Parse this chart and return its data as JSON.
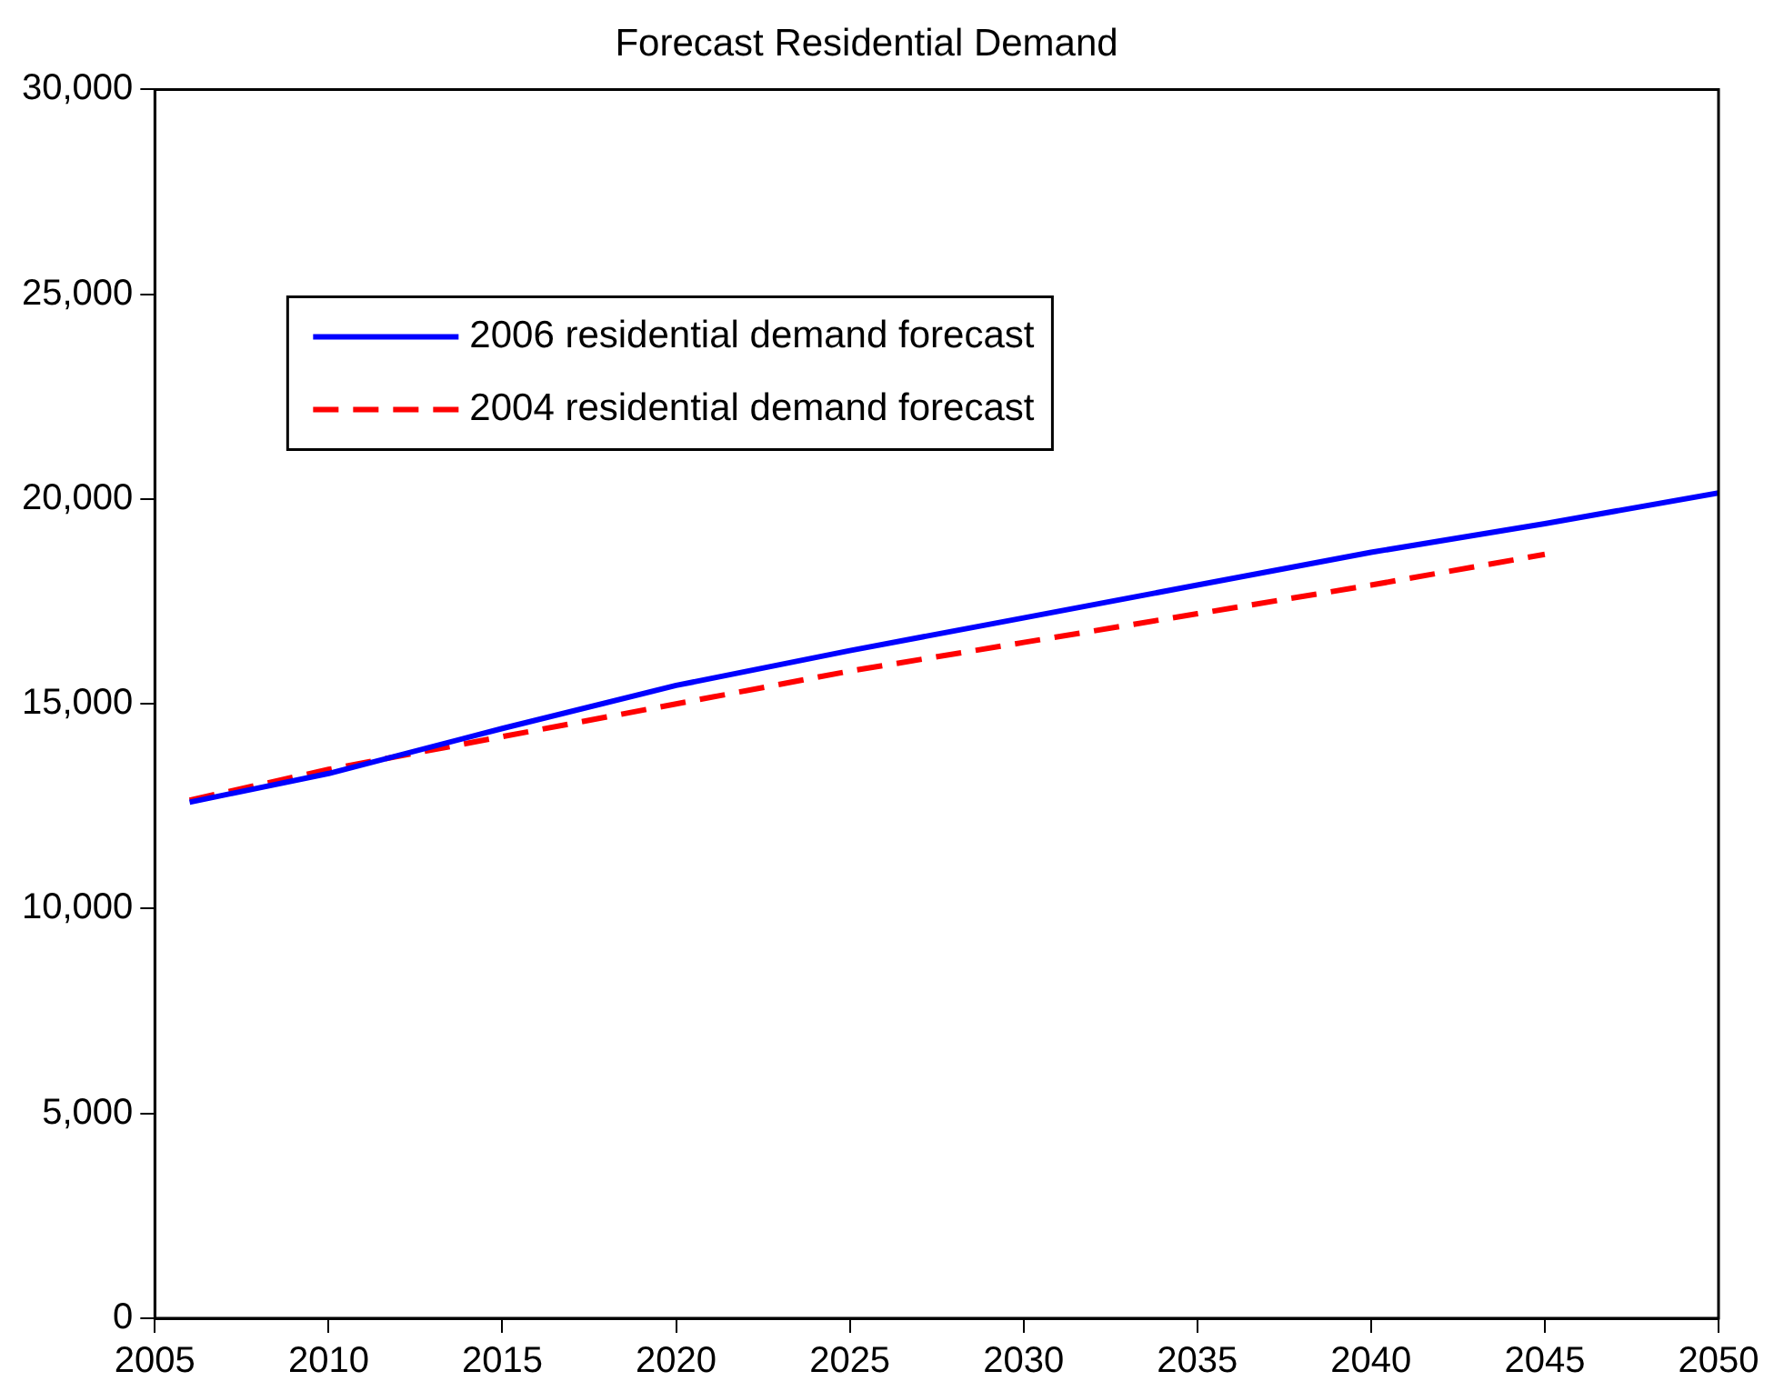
{
  "chart_data": {
    "type": "line",
    "title": "Forecast Residential Demand",
    "xlim": [
      2005,
      2050
    ],
    "xticks": [
      2005,
      2010,
      2015,
      2020,
      2025,
      2030,
      2035,
      2040,
      2045,
      2050
    ],
    "ylim": [
      0,
      30000
    ],
    "yticks": [
      {
        "value": 0,
        "label": "0"
      },
      {
        "value": 5000,
        "label": "5,000"
      },
      {
        "value": 10000,
        "label": "10,000"
      },
      {
        "value": 15000,
        "label": "15,000"
      },
      {
        "value": 20000,
        "label": "20,000"
      },
      {
        "value": 25000,
        "label": "25,000"
      },
      {
        "value": 30000,
        "label": "30,000"
      }
    ],
    "grid": false,
    "legend": "top left",
    "series": [
      {
        "name": "2006 residential demand forecast",
        "color": "#0000ff",
        "line_style": "solid",
        "x": [
          2006,
          2010,
          2015,
          2020,
          2025,
          2030,
          2035,
          2040,
          2045,
          2050
        ],
        "values": [
          12600,
          13300,
          14400,
          15450,
          16300,
          17100,
          17900,
          18700,
          19400,
          20150
        ]
      },
      {
        "name": "2004 residential demand forecast",
        "color": "#ff0000",
        "line_style": "dashed",
        "x": [
          2006,
          2010,
          2015,
          2020,
          2025,
          2030,
          2035,
          2040,
          2045
        ],
        "values": [
          12650,
          13400,
          14200,
          15000,
          15800,
          16500,
          17200,
          17900,
          18650
        ]
      }
    ]
  }
}
